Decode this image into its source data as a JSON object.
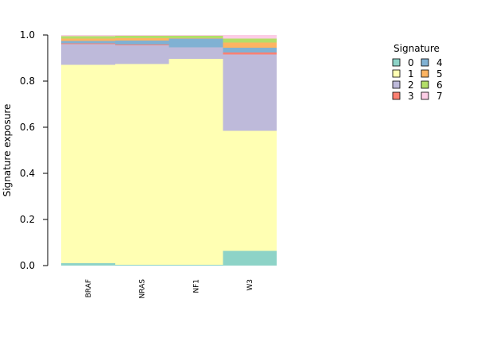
{
  "chart_data": {
    "type": "bar",
    "stacked": true,
    "ylabel": "Signature exposure",
    "xlabel": "",
    "ylim": [
      0,
      1
    ],
    "yticks": [
      "0.0",
      "0.2",
      "0.4",
      "0.6",
      "0.8",
      "1.0"
    ],
    "categories": [
      "BRAF",
      "NRAS",
      "NF1",
      "W3"
    ],
    "series": [
      {
        "name": "0",
        "color": "#8DD3C7",
        "values": [
          0.01,
          0.003,
          0.003,
          0.064
        ]
      },
      {
        "name": "1",
        "color": "#FFFFB3",
        "values": [
          0.86,
          0.872,
          0.893,
          0.521
        ]
      },
      {
        "name": "2",
        "color": "#BEBADA",
        "values": [
          0.09,
          0.08,
          0.05,
          0.33
        ]
      },
      {
        "name": "3",
        "color": "#FB8072",
        "values": [
          0.003,
          0.003,
          0.001,
          0.01
        ]
      },
      {
        "name": "4",
        "color": "#80B1D3",
        "values": [
          0.012,
          0.018,
          0.037,
          0.02
        ]
      },
      {
        "name": "5",
        "color": "#FDB462",
        "values": [
          0.01,
          0.01,
          0.003,
          0.022
        ]
      },
      {
        "name": "6",
        "color": "#B3DE69",
        "values": [
          0.01,
          0.01,
          0.01,
          0.018
        ]
      },
      {
        "name": "7",
        "color": "#FCCDE5",
        "values": [
          0.005,
          0.004,
          0.003,
          0.015
        ]
      }
    ],
    "legend": {
      "title": "Signature",
      "placement": "top-right"
    },
    "grid": false
  }
}
